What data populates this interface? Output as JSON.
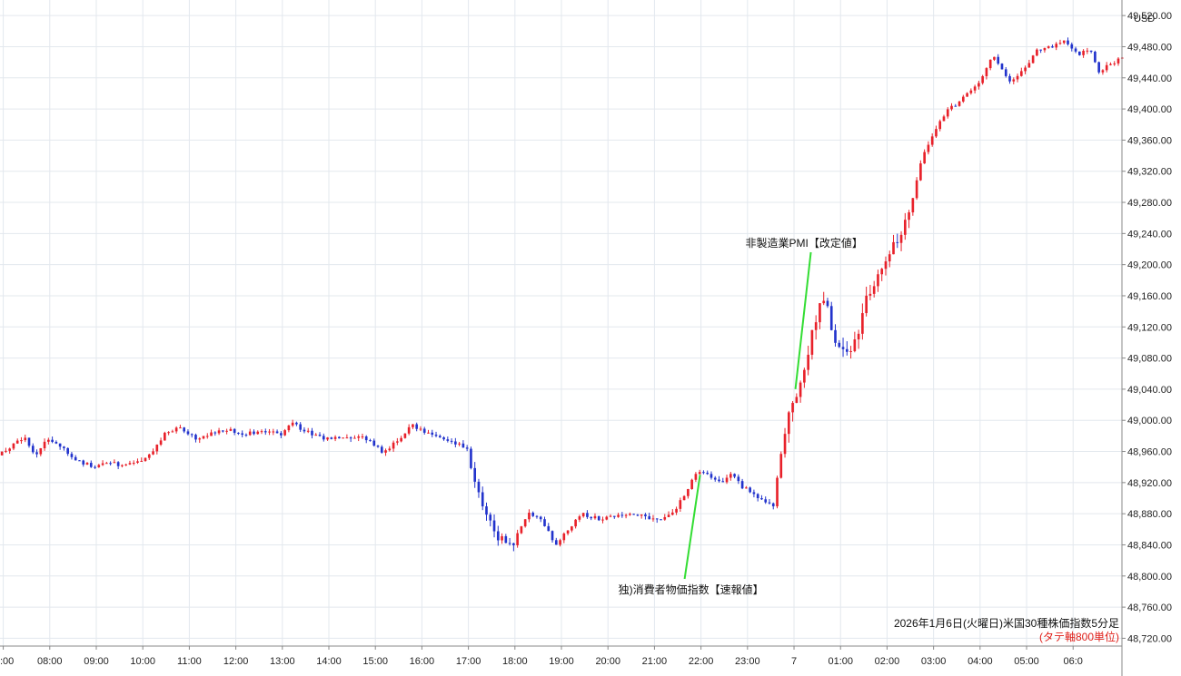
{
  "chart_data": {
    "type": "candlestick",
    "title": "2026年1月6日(火曜日)米国30種株価指数5分足",
    "subtitle": "(タテ軸800単位)",
    "currency_label": "USD",
    "ylim": [
      48710,
      49540
    ],
    "y_ticks": [
      48720,
      48760,
      48800,
      48840,
      48880,
      48920,
      48960,
      49000,
      49040,
      49080,
      49120,
      49160,
      49200,
      49240,
      49280,
      49320,
      49360,
      49400,
      49440,
      49480,
      49520
    ],
    "y_tick_labels": [
      "48,720.00",
      "48,760.00",
      "48,800.00",
      "48,840.00",
      "48,880.00",
      "48,920.00",
      "48,960.00",
      "49,000.00",
      "49,040.00",
      "49,080.00",
      "49,120.00",
      "49,160.00",
      "49,200.00",
      "49,240.00",
      "49,280.00",
      "49,320.00",
      "49,360.00",
      "49,400.00",
      "49,440.00",
      "49,480.00",
      "49,520.00"
    ],
    "x_tick_labels": [
      ":00",
      "08:00",
      "09:00",
      "10:00",
      "11:00",
      "12:00",
      "13:00",
      "14:00",
      "15:00",
      "16:00",
      "17:00",
      "18:00",
      "19:00",
      "20:00",
      "21:00",
      "22:00",
      "23:00",
      "7",
      "01:00",
      "02:00",
      "03:00",
      "04:00",
      "05:00",
      "06:0"
    ],
    "x_tick_hours": [
      7,
      8,
      9,
      10,
      11,
      12,
      13,
      14,
      15,
      16,
      17,
      18,
      19,
      20,
      21,
      22,
      23,
      24,
      25,
      26,
      27,
      28,
      29,
      30
    ],
    "x_range_hours": [
      6.93,
      31.05
    ],
    "up_color": "#e8212a",
    "down_color": "#2233cc",
    "grid": true,
    "price_path": [
      [
        6.93,
        48955
      ],
      [
        7.5,
        48978
      ],
      [
        7.75,
        48955
      ],
      [
        8.0,
        48978
      ],
      [
        8.3,
        48965
      ],
      [
        8.6,
        48948
      ],
      [
        9.0,
        48940
      ],
      [
        9.3,
        48946
      ],
      [
        9.6,
        48942
      ],
      [
        10.0,
        48947
      ],
      [
        10.3,
        48962
      ],
      [
        10.55,
        48985
      ],
      [
        10.8,
        48990
      ],
      [
        11.2,
        48977
      ],
      [
        11.5,
        48982
      ],
      [
        11.8,
        48988
      ],
      [
        12.2,
        48983
      ],
      [
        12.6,
        48986
      ],
      [
        13.0,
        48982
      ],
      [
        13.25,
        48996
      ],
      [
        13.6,
        48985
      ],
      [
        14.0,
        48976
      ],
      [
        14.4,
        48979
      ],
      [
        14.8,
        48978
      ],
      [
        15.0,
        48970
      ],
      [
        15.2,
        48958
      ],
      [
        15.55,
        48975
      ],
      [
        15.8,
        48994
      ],
      [
        16.1,
        48985
      ],
      [
        16.4,
        48977
      ],
      [
        16.7,
        48972
      ],
      [
        17.0,
        48965
      ],
      [
        17.15,
        48930
      ],
      [
        17.4,
        48880
      ],
      [
        17.7,
        48848
      ],
      [
        18.0,
        48842
      ],
      [
        18.35,
        48882
      ],
      [
        18.65,
        48870
      ],
      [
        18.9,
        48840
      ],
      [
        19.2,
        48862
      ],
      [
        19.5,
        48880
      ],
      [
        19.9,
        48872
      ],
      [
        20.3,
        48880
      ],
      [
        20.7,
        48878
      ],
      [
        21.1,
        48872
      ],
      [
        21.5,
        48886
      ],
      [
        21.7,
        48905
      ],
      [
        21.95,
        48933
      ],
      [
        22.2,
        48930
      ],
      [
        22.5,
        48918
      ],
      [
        22.7,
        48935
      ],
      [
        22.9,
        48915
      ],
      [
        23.2,
        48905
      ],
      [
        23.4,
        48895
      ],
      [
        23.6,
        48890
      ],
      [
        23.75,
        48960
      ],
      [
        23.95,
        49010
      ],
      [
        24.2,
        49045
      ],
      [
        24.45,
        49120
      ],
      [
        24.7,
        49160
      ],
      [
        24.95,
        49095
      ],
      [
        25.2,
        49080
      ],
      [
        25.4,
        49110
      ],
      [
        25.6,
        49160
      ],
      [
        25.85,
        49185
      ],
      [
        26.0,
        49200
      ],
      [
        26.2,
        49225
      ],
      [
        26.4,
        49250
      ],
      [
        26.55,
        49275
      ],
      [
        26.75,
        49330
      ],
      [
        27.0,
        49365
      ],
      [
        27.3,
        49395
      ],
      [
        27.6,
        49410
      ],
      [
        27.85,
        49425
      ],
      [
        28.1,
        49440
      ],
      [
        28.3,
        49470
      ],
      [
        28.5,
        49450
      ],
      [
        28.7,
        49432
      ],
      [
        28.85,
        49445
      ],
      [
        29.05,
        49452
      ],
      [
        29.25,
        49475
      ],
      [
        29.55,
        49480
      ],
      [
        29.85,
        49488
      ],
      [
        30.15,
        49468
      ],
      [
        30.4,
        49478
      ],
      [
        30.6,
        49448
      ],
      [
        31.05,
        49465
      ]
    ],
    "annotations": [
      {
        "text": "独)消費者物価指数【速報値】",
        "x_hours": 21.98,
        "y": 48930
      },
      {
        "text": "非製造業PMI【改定値】",
        "x_hours": 24.03,
        "y": 49040
      }
    ]
  }
}
